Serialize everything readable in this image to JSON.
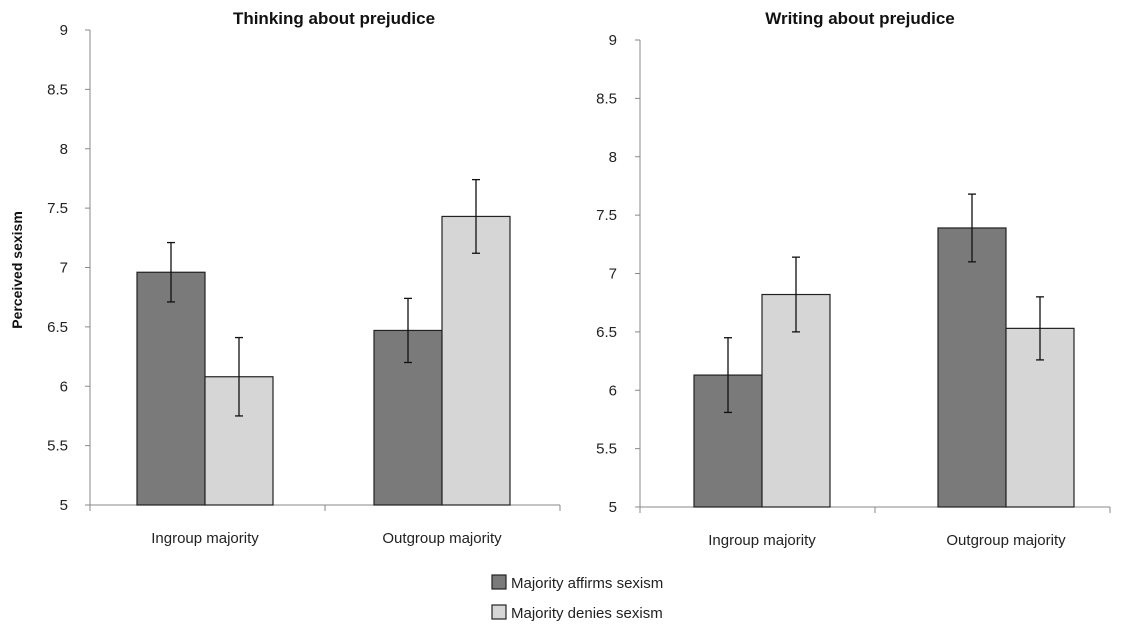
{
  "colors": {
    "affirms": "#7a7a7a",
    "denies": "#d6d6d6"
  },
  "legend": {
    "placement": "bottom-center",
    "entries": [
      {
        "name": "Majority affirms sexism",
        "color": "#7a7a7a"
      },
      {
        "name": "Majority denies sexism",
        "color": "#d6d6d6"
      }
    ]
  },
  "chart_data": [
    {
      "type": "bar",
      "title": "Thinking about prejudice",
      "ylabel": "Perceived sexism",
      "xlabel": "",
      "ylim": [
        5,
        9
      ],
      "yticks": [
        "5",
        "5.5",
        "6",
        "6.5",
        "7",
        "7.5",
        "8",
        "8.5",
        "9"
      ],
      "categories": [
        "Ingroup majority",
        "Outgroup majority"
      ],
      "series": [
        {
          "name": "Majority affirms sexism",
          "values": [
            6.96,
            6.47
          ],
          "errors": [
            0.25,
            0.27
          ]
        },
        {
          "name": "Majority denies sexism",
          "values": [
            6.08,
            7.43
          ],
          "errors": [
            0.33,
            0.31
          ]
        }
      ],
      "grid": false
    },
    {
      "type": "bar",
      "title": "Writing about prejudice",
      "ylabel": "",
      "xlabel": "",
      "ylim": [
        5,
        9
      ],
      "yticks": [
        "5",
        "5.5",
        "6",
        "6.5",
        "7",
        "7.5",
        "8",
        "8.5",
        "9"
      ],
      "categories": [
        "Ingroup majority",
        "Outgroup majority"
      ],
      "series": [
        {
          "name": "Majority affirms sexism",
          "values": [
            6.13,
            7.39
          ],
          "errors": [
            0.32,
            0.29
          ]
        },
        {
          "name": "Majority denies sexism",
          "values": [
            6.82,
            6.53
          ],
          "errors": [
            0.32,
            0.27
          ]
        }
      ],
      "grid": false
    }
  ]
}
